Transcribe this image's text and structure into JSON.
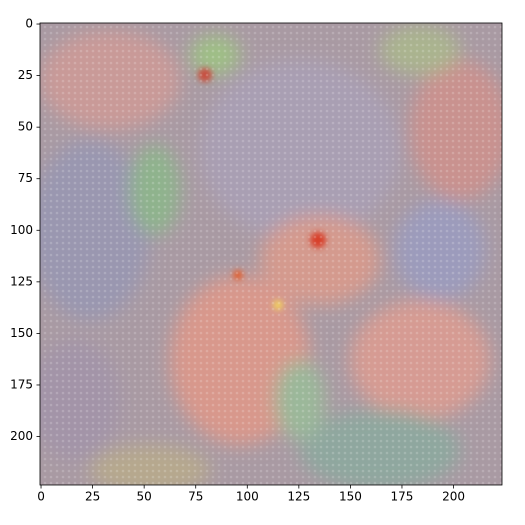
{
  "chart_data": {
    "type": "image",
    "xlim": [
      -0.5,
      223.5
    ],
    "ylim": [
      223.5,
      -0.5
    ],
    "xticks": [
      0,
      25,
      50,
      75,
      100,
      125,
      150,
      175,
      200
    ],
    "yticks": [
      0,
      25,
      50,
      75,
      100,
      125,
      150,
      175,
      200
    ]
  }
}
